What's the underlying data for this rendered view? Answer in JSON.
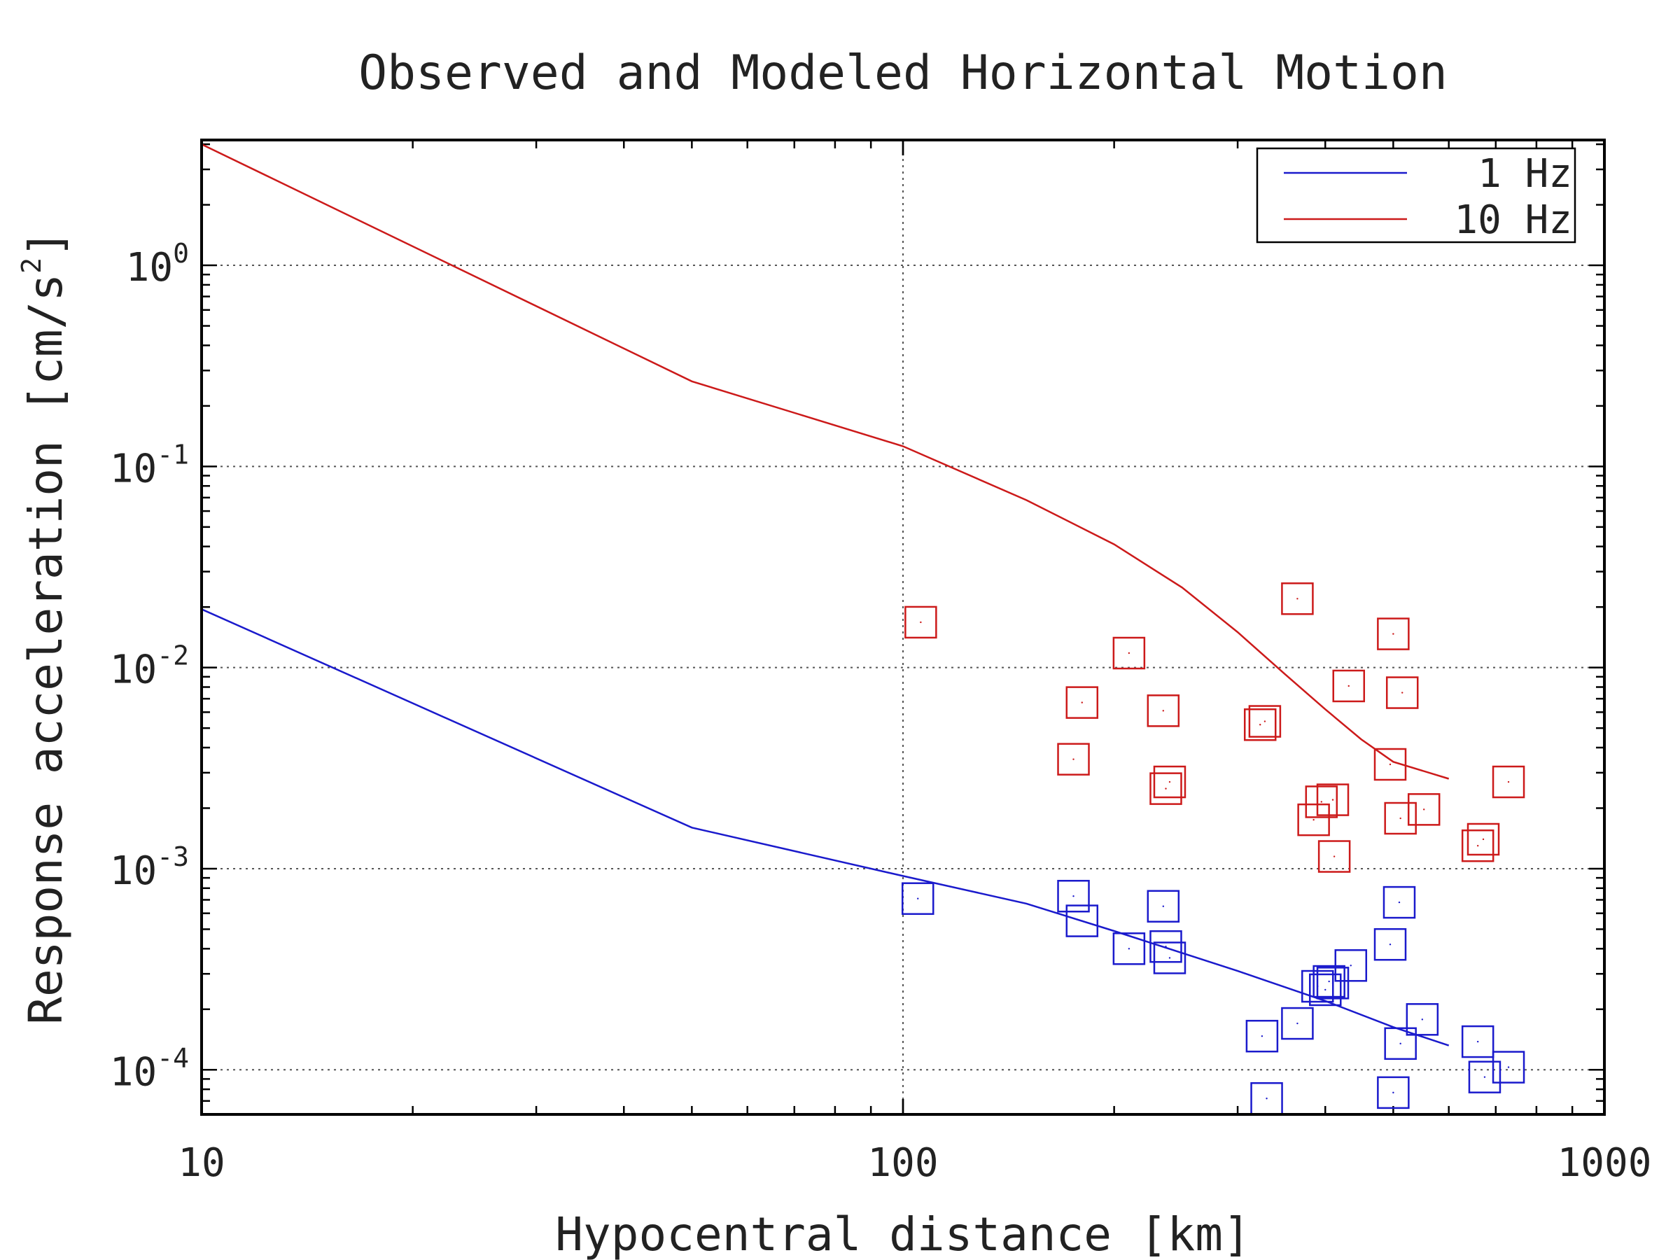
{
  "chart_data": {
    "type": "scatter",
    "title": "Observed and Modeled Horizontal Motion",
    "xlabel": "Hypocentral distance [km]",
    "ylabel": "Response acceleration [cm/s",
    "ylabel_superscript": "2",
    "ylabel_close": "]",
    "xscale": "log",
    "yscale": "log",
    "xlim": [
      10,
      1000
    ],
    "ylim": [
      6e-05,
      4.2
    ],
    "grid": true,
    "legend_position": "top-right",
    "x_ticks": [
      {
        "value": 10,
        "label": "10"
      },
      {
        "value": 100,
        "label": "100"
      },
      {
        "value": 1000,
        "label": "1000"
      }
    ],
    "y_ticks": [
      {
        "value": 1,
        "base": "10",
        "exp": "0"
      },
      {
        "value": 0.1,
        "base": "10",
        "exp": "-1"
      },
      {
        "value": 0.01,
        "base": "10",
        "exp": "-2"
      },
      {
        "value": 0.001,
        "base": "10",
        "exp": "-3"
      },
      {
        "value": 0.0001,
        "base": "10",
        "exp": "-4"
      }
    ],
    "series": [
      {
        "name": "1 Hz",
        "color": "#1a1acc",
        "model_line": [
          [
            10,
            0.0195
          ],
          [
            50,
            0.0016
          ],
          [
            100,
            0.00092
          ],
          [
            150,
            0.00067
          ],
          [
            200,
            0.00049
          ],
          [
            300,
            0.00031
          ],
          [
            400,
            0.00022
          ],
          [
            500,
            0.000163
          ],
          [
            600,
            0.000132
          ]
        ],
        "observed": [
          [
            105,
            0.00071
          ],
          [
            175,
            0.00073
          ],
          [
            180,
            0.00055
          ],
          [
            210,
            0.0004
          ],
          [
            235,
            0.00065
          ],
          [
            237,
            0.00041
          ],
          [
            240,
            0.00036
          ],
          [
            325,
            0.000147
          ],
          [
            330,
            7.2e-05
          ],
          [
            365,
            0.00017
          ],
          [
            390,
            0.00026
          ],
          [
            400,
            0.00025
          ],
          [
            405,
            0.000275
          ],
          [
            410,
            0.00027
          ],
          [
            435,
            0.00033
          ],
          [
            495,
            0.00042
          ],
          [
            500,
            7.7e-05
          ],
          [
            510,
            0.00068
          ],
          [
            512,
            0.000135
          ],
          [
            550,
            0.000178
          ],
          [
            660,
            0.000138
          ],
          [
            675,
            9.2e-05
          ],
          [
            730,
            0.000103
          ]
        ]
      },
      {
        "name": "10 Hz",
        "color": "#cc1a1a",
        "model_line": [
          [
            10,
            4.0
          ],
          [
            50,
            0.265
          ],
          [
            100,
            0.126
          ],
          [
            150,
            0.068
          ],
          [
            200,
            0.041
          ],
          [
            250,
            0.025
          ],
          [
            300,
            0.015
          ],
          [
            350,
            0.0093
          ],
          [
            400,
            0.0062
          ],
          [
            450,
            0.0044
          ],
          [
            500,
            0.0034
          ],
          [
            600,
            0.0028
          ]
        ],
        "observed": [
          [
            106,
            0.0168
          ],
          [
            175,
            0.0035
          ],
          [
            180,
            0.0067
          ],
          [
            210,
            0.0118
          ],
          [
            235,
            0.0061
          ],
          [
            237,
            0.0025
          ],
          [
            240,
            0.0027
          ],
          [
            323,
            0.0052
          ],
          [
            328,
            0.0054
          ],
          [
            365,
            0.022
          ],
          [
            385,
            0.00175
          ],
          [
            395,
            0.00215
          ],
          [
            410,
            0.0022
          ],
          [
            412,
            0.00115
          ],
          [
            432,
            0.0081
          ],
          [
            495,
            0.0033
          ],
          [
            500,
            0.0147
          ],
          [
            512,
            0.00178
          ],
          [
            515,
            0.0075
          ],
          [
            553,
            0.00197
          ],
          [
            660,
            0.0013
          ],
          [
            672,
            0.0014
          ],
          [
            730,
            0.0027
          ]
        ]
      }
    ]
  }
}
